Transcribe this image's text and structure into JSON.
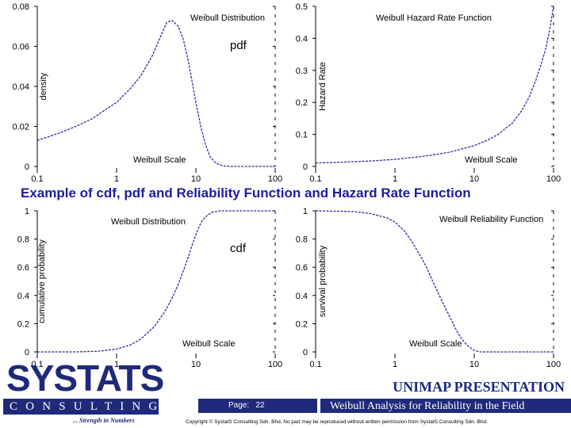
{
  "slide": {
    "title": "Example of cdf, pdf and Reliability Function and Hazard Rate Function"
  },
  "colors": {
    "curve": "#2a2aa8",
    "brand": "#1f2a7a",
    "title": "#1d1d9e"
  },
  "chart_data": [
    {
      "type": "line",
      "title": "Weibull Distribution",
      "annotation": "pdf",
      "xlabel": "Weibull Scale",
      "ylabel": "density",
      "x_scale": "log",
      "xlim": [
        0.1,
        100
      ],
      "ylim": [
        0,
        0.08
      ],
      "x_ticks": [
        "0.1",
        "1",
        "10",
        "100"
      ],
      "y_ticks": [
        "0",
        "0.02",
        "0.04",
        "0.06",
        "0.08"
      ],
      "series": [
        {
          "x": [
            0.1,
            0.2,
            0.35,
            0.5,
            0.7,
            1,
            1.5,
            2,
            2.8,
            3.5,
            4.3,
            5,
            6,
            7,
            8,
            9,
            10,
            11.5,
            13,
            15,
            18,
            22,
            28,
            40,
            60,
            100
          ],
          "y": [
            0.013,
            0.017,
            0.021,
            0.024,
            0.028,
            0.032,
            0.039,
            0.045,
            0.055,
            0.064,
            0.072,
            0.073,
            0.07,
            0.063,
            0.053,
            0.042,
            0.032,
            0.02,
            0.012,
            0.005,
            0.0015,
            0.0003,
            0,
            0,
            0,
            0
          ]
        }
      ]
    },
    {
      "type": "line",
      "title": "Weibull Hazard Rate Function",
      "xlabel": "Weibull Scale",
      "ylabel": "Hazard Rate",
      "x_scale": "log",
      "xlim": [
        0.1,
        100
      ],
      "ylim": [
        0,
        0.5
      ],
      "x_ticks": [
        "0.1",
        "1",
        "10",
        "100"
      ],
      "y_ticks": [
        "0",
        "0.1",
        "0.2",
        "0.3",
        "0.4",
        "0.5"
      ],
      "series": [
        {
          "x": [
            0.1,
            0.2,
            0.5,
            1,
            2,
            3,
            5,
            10,
            15,
            20,
            30,
            40,
            50,
            60,
            70,
            80,
            90,
            100
          ],
          "y": [
            0.011,
            0.013,
            0.017,
            0.022,
            0.03,
            0.036,
            0.045,
            0.065,
            0.083,
            0.1,
            0.135,
            0.175,
            0.22,
            0.27,
            0.32,
            0.37,
            0.43,
            0.5
          ]
        }
      ]
    },
    {
      "type": "line",
      "title": "Weibull Distribution",
      "annotation": "cdf",
      "xlabel": "Weibull Scale",
      "ylabel": "cumulative probability",
      "x_scale": "log",
      "xlim": [
        0.1,
        100
      ],
      "ylim": [
        0,
        1
      ],
      "x_ticks": [
        "0.1",
        "1",
        "10",
        "100"
      ],
      "y_ticks": [
        "0",
        "0.2",
        "0.4",
        "0.6",
        "0.8",
        "1"
      ],
      "series": [
        {
          "x": [
            0.1,
            0.3,
            0.6,
            1,
            1.5,
            2,
            3,
            4,
            5,
            6,
            7,
            8,
            9,
            10,
            11,
            12,
            14,
            16,
            20,
            30,
            100
          ],
          "y": [
            0,
            0,
            0.005,
            0.02,
            0.05,
            0.09,
            0.18,
            0.28,
            0.38,
            0.48,
            0.58,
            0.67,
            0.76,
            0.83,
            0.89,
            0.93,
            0.97,
            0.99,
            1,
            1,
            1
          ]
        }
      ]
    },
    {
      "type": "line",
      "title": "Weibull Reliability Function",
      "xlabel": "Weibull Scale",
      "ylabel": "survival probability",
      "x_scale": "log",
      "xlim": [
        0.1,
        100
      ],
      "ylim": [
        0,
        1
      ],
      "x_ticks": [
        "0.1",
        "1",
        "10",
        "100"
      ],
      "y_ticks": [
        "0",
        "0.2",
        "0.4",
        "0.6",
        "0.8",
        "1"
      ],
      "series": [
        {
          "x": [
            0.1,
            0.3,
            0.5,
            0.8,
            1,
            1.3,
            1.6,
            2,
            2.5,
            3,
            3.5,
            4,
            5,
            6,
            7,
            8,
            10,
            12,
            15,
            20,
            30,
            100
          ],
          "y": [
            1,
            0.995,
            0.98,
            0.95,
            0.92,
            0.86,
            0.79,
            0.7,
            0.6,
            0.5,
            0.42,
            0.35,
            0.24,
            0.15,
            0.09,
            0.05,
            0.01,
            0,
            0,
            0,
            0,
            0
          ]
        }
      ]
    }
  ],
  "footer": {
    "logo_main": "SYSTATS",
    "logo_sub": "CONSULTING",
    "logo_tagline": "... Strength in Numbers",
    "presentation": "UNIMAP PRESENTATION",
    "page_label": "Page:   22",
    "field_text": "Weibull Analysis for Reliability in the Field",
    "copyright": "Copyright © SystatS Consulting Sdn. Bhd.  No part may be reproduced without written permission from SystatS Consulting Sdn. Bhd."
  }
}
